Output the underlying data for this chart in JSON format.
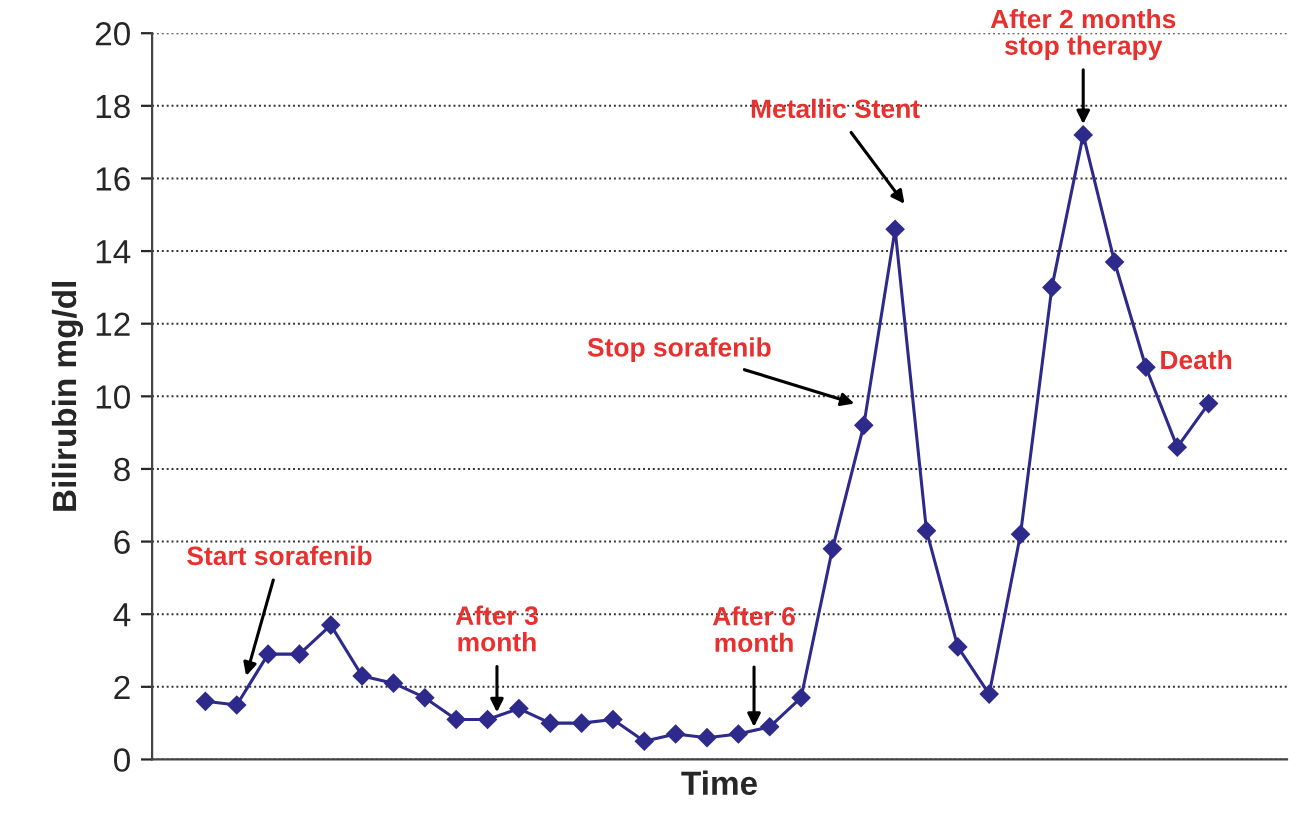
{
  "chart_data": {
    "type": "line",
    "xlabel": "Time",
    "ylabel": "Bilirubin mg/dl",
    "categories": [
      null,
      null,
      null,
      null,
      null,
      null,
      null,
      null,
      null,
      null,
      null,
      null,
      null,
      null,
      null,
      null,
      null,
      null,
      null,
      null,
      null,
      null,
      null,
      null,
      null,
      null,
      null,
      null,
      null,
      null,
      null,
      null,
      null
    ],
    "series": [
      {
        "color": "#2e2a8c",
        "values": [
          1.6,
          1.5,
          2.9,
          2.9,
          3.7,
          2.3,
          2.1,
          1.7,
          1.1,
          1.1,
          1.4,
          1.0,
          1.0,
          1.1,
          0.5,
          0.7,
          0.6,
          0.7,
          0.9,
          1.7,
          5.8,
          9.2,
          14.6,
          6.3,
          3.1,
          1.8,
          6.2,
          13.0,
          17.2,
          13.7,
          10.8,
          8.6,
          9.8
        ]
      }
    ],
    "ylim": [
      0,
      20
    ],
    "yticks": [
      0,
      2,
      4,
      6,
      8,
      10,
      12,
      14,
      16,
      18,
      20
    ],
    "tick_labels": "y",
    "grid": "y",
    "marker": "diamond",
    "line_style": "solid",
    "annotations": [
      "Start sorafenib",
      "After 3\nmonth",
      "After 6\nmonth",
      "Stop sorafenib",
      "Metallic Stent",
      "After 2 months\nstop therapy",
      "Death"
    ]
  }
}
